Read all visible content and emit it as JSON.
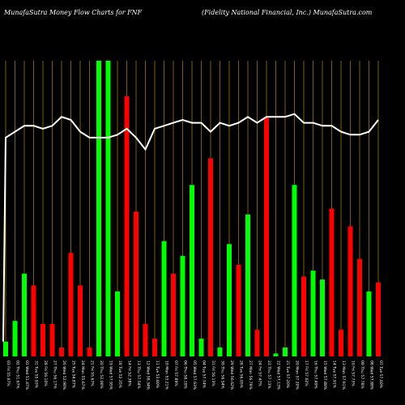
{
  "header": {
    "left_title": "MunafaSutra  Money Flow  Charts for FNF",
    "right_title": "(Fidelity National Financial, Inc.) MunafaSutra.com"
  },
  "colors": {
    "background": "#000000",
    "grid": "#b8860b",
    "up": "#00ff00",
    "down": "#ff0000",
    "line": "#ffffff"
  },
  "chart_data": {
    "type": "bar",
    "title": "",
    "xlabel": "",
    "ylabel": "",
    "ylim": [
      0,
      100
    ],
    "grid": true,
    "categories": [
      "03 Fri 55.67%",
      "02 Thu 51.67%",
      "01 Wed 51.47%",
      "31 Tue 55.93%",
      "28 Fri 56.10%",
      "27 Thu 56.17%",
      "26 Wed 52.98%",
      "25 Tue 54.87%",
      "24 Mon 55.67%",
      "21 Fri 55.67%",
      "20 Thu 52.00%",
      "19 Wed 57.95%",
      "18 Tue 52.35%",
      "14 Fri 52.38%",
      "13 Thu 57.54%",
      "12 Wed 58.34%",
      "11 Tue 53.80%",
      "10 Mon 53.21%",
      "07 Fri 57.89%",
      "06 Thu 58.10%",
      "05 Wed 57.63%",
      "04 Tue 57.74%",
      "31 Fri 56.13%",
      "30 Thu 56.54%",
      "29 Wed 56.62%",
      "28 Tue 56.05%",
      "27 Mon 56.79%",
      "24 Fri 57.47%",
      "23 Thu 57.13%",
      "22 Wed 57.13%",
      "21 Tue 57.20%",
      "20 Mon 57.20%",
      "17 Fri 57.62%",
      "16 Thu 57.49%",
      "15 Wed 57.88%",
      "14 Tue 57.91%",
      "13 Mon 57.91%",
      "10 Fri 57.73%",
      "09 Thu 57.78%",
      "08 Wed 57.88%",
      "07 Tue 57.60%"
    ],
    "values": [
      5,
      12,
      28,
      24,
      11,
      11,
      3,
      35,
      24,
      3,
      100,
      100,
      22,
      88,
      49,
      11,
      6,
      39,
      28,
      34,
      58,
      6,
      67,
      3,
      38,
      31,
      48,
      9,
      81,
      1,
      3,
      58,
      27,
      29,
      26,
      50,
      9,
      44,
      33,
      22,
      25
    ],
    "directions": [
      "up",
      "up",
      "up",
      "down",
      "down",
      "down",
      "down",
      "down",
      "down",
      "down",
      "up",
      "up",
      "up",
      "down",
      "down",
      "down",
      "down",
      "up",
      "down",
      "up",
      "up",
      "up",
      "down",
      "up",
      "up",
      "down",
      "up",
      "down",
      "down",
      "up",
      "up",
      "up",
      "down",
      "up",
      "up",
      "down",
      "down",
      "down",
      "down",
      "up",
      "down"
    ],
    "line": [
      74,
      76,
      78,
      78,
      77,
      78,
      81,
      80,
      76,
      74,
      74,
      74,
      75,
      77,
      74,
      70,
      77,
      78,
      79,
      80,
      79,
      79,
      76,
      79,
      78,
      79,
      81,
      79,
      81,
      81,
      81,
      82,
      79,
      79,
      78,
      78,
      76,
      75,
      75,
      76,
      80
    ],
    "line_start": 5
  }
}
